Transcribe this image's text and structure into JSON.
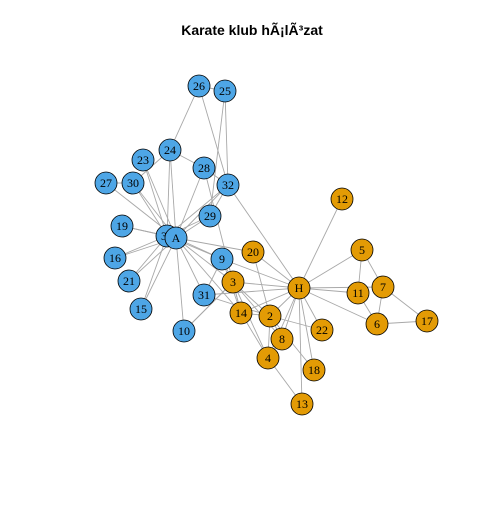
{
  "title": "Karate klub hÃ¡lÃ³zat",
  "colors": {
    "blue_group": "#4ea6e6",
    "orange_group": "#e39b05",
    "edge": "#a8a8a8",
    "node_border": "#000000"
  },
  "nodes": [
    {
      "id": "26",
      "group": "blue"
    },
    {
      "id": "25",
      "group": "blue"
    },
    {
      "id": "24",
      "group": "blue"
    },
    {
      "id": "23",
      "group": "blue"
    },
    {
      "id": "28",
      "group": "blue"
    },
    {
      "id": "27",
      "group": "blue"
    },
    {
      "id": "30",
      "group": "blue"
    },
    {
      "id": "32",
      "group": "blue"
    },
    {
      "id": "29",
      "group": "blue"
    },
    {
      "id": "19",
      "group": "blue"
    },
    {
      "id": "33",
      "group": "blue"
    },
    {
      "id": "A",
      "group": "blue"
    },
    {
      "id": "16",
      "group": "blue"
    },
    {
      "id": "9",
      "group": "blue"
    },
    {
      "id": "21",
      "group": "blue"
    },
    {
      "id": "31",
      "group": "blue"
    },
    {
      "id": "15",
      "group": "blue"
    },
    {
      "id": "10",
      "group": "blue"
    },
    {
      "id": "12",
      "group": "orange"
    },
    {
      "id": "5",
      "group": "orange"
    },
    {
      "id": "20",
      "group": "orange"
    },
    {
      "id": "3",
      "group": "orange"
    },
    {
      "id": "H",
      "group": "orange"
    },
    {
      "id": "11",
      "group": "orange"
    },
    {
      "id": "7",
      "group": "orange"
    },
    {
      "id": "14",
      "group": "orange"
    },
    {
      "id": "2",
      "group": "orange"
    },
    {
      "id": "6",
      "group": "orange"
    },
    {
      "id": "17",
      "group": "orange"
    },
    {
      "id": "22",
      "group": "orange"
    },
    {
      "id": "8",
      "group": "orange"
    },
    {
      "id": "4",
      "group": "orange"
    },
    {
      "id": "18",
      "group": "orange"
    },
    {
      "id": "13",
      "group": "orange"
    }
  ],
  "edges": [
    [
      "26",
      "25"
    ],
    [
      "26",
      "24"
    ],
    [
      "26",
      "32"
    ],
    [
      "25",
      "32"
    ],
    [
      "25",
      "29"
    ],
    [
      "24",
      "28"
    ],
    [
      "24",
      "33"
    ],
    [
      "24",
      "A"
    ],
    [
      "24",
      "30"
    ],
    [
      "23",
      "33"
    ],
    [
      "23",
      "A"
    ],
    [
      "27",
      "30"
    ],
    [
      "27",
      "A"
    ],
    [
      "30",
      "33"
    ],
    [
      "30",
      "A"
    ],
    [
      "28",
      "A"
    ],
    [
      "28",
      "32"
    ],
    [
      "32",
      "29"
    ],
    [
      "32",
      "33"
    ],
    [
      "32",
      "A"
    ],
    [
      "32",
      "H"
    ],
    [
      "29",
      "33"
    ],
    [
      "29",
      "A"
    ],
    [
      "19",
      "33"
    ],
    [
      "19",
      "A"
    ],
    [
      "16",
      "33"
    ],
    [
      "16",
      "A"
    ],
    [
      "21",
      "33"
    ],
    [
      "21",
      "A"
    ],
    [
      "15",
      "33"
    ],
    [
      "15",
      "A"
    ],
    [
      "10",
      "A"
    ],
    [
      "10",
      "3"
    ],
    [
      "9",
      "33"
    ],
    [
      "9",
      "A"
    ],
    [
      "9",
      "3"
    ],
    [
      "9",
      "H"
    ],
    [
      "31",
      "A"
    ],
    [
      "31",
      "9"
    ],
    [
      "31",
      "2"
    ],
    [
      "31",
      "H"
    ],
    [
      "20",
      "A"
    ],
    [
      "20",
      "H"
    ],
    [
      "20",
      "2"
    ],
    [
      "3",
      "A"
    ],
    [
      "3",
      "H"
    ],
    [
      "3",
      "2"
    ],
    [
      "3",
      "4"
    ],
    [
      "3",
      "8"
    ],
    [
      "3",
      "14"
    ],
    [
      "3",
      "28"
    ],
    [
      "3",
      "10"
    ],
    [
      "14",
      "A"
    ],
    [
      "14",
      "H"
    ],
    [
      "14",
      "2"
    ],
    [
      "14",
      "4"
    ],
    [
      "14",
      "3"
    ],
    [
      "12",
      "H"
    ],
    [
      "5",
      "H"
    ],
    [
      "5",
      "11"
    ],
    [
      "5",
      "7"
    ],
    [
      "11",
      "H"
    ],
    [
      "11",
      "6"
    ],
    [
      "7",
      "H"
    ],
    [
      "7",
      "6"
    ],
    [
      "7",
      "17"
    ],
    [
      "6",
      "H"
    ],
    [
      "6",
      "17"
    ],
    [
      "2",
      "H"
    ],
    [
      "2",
      "4"
    ],
    [
      "2",
      "8"
    ],
    [
      "2",
      "18"
    ],
    [
      "2",
      "22"
    ],
    [
      "8",
      "H"
    ],
    [
      "8",
      "4"
    ],
    [
      "4",
      "H"
    ],
    [
      "4",
      "13"
    ],
    [
      "18",
      "H"
    ],
    [
      "22",
      "H"
    ],
    [
      "13",
      "H"
    ],
    [
      "33",
      "A"
    ],
    [
      "9",
      "14"
    ]
  ]
}
